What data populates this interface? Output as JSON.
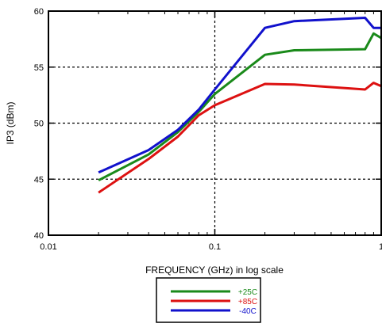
{
  "chart_data": {
    "type": "line",
    "xlabel": "FREQUENCY (GHz) in log scale",
    "ylabel": "IP3 (dBm)",
    "x_scale": "log",
    "xlim": [
      0.01,
      1
    ],
    "ylim": [
      40,
      60
    ],
    "x_ticks": [
      {
        "value": 0.01,
        "label": "0.01"
      },
      {
        "value": 0.1,
        "label": "0.1"
      },
      {
        "value": 1,
        "label": "1"
      }
    ],
    "y_ticks": [
      {
        "value": 40,
        "label": "40"
      },
      {
        "value": 45,
        "label": "45"
      },
      {
        "value": 50,
        "label": "50"
      },
      {
        "value": 55,
        "label": "55"
      },
      {
        "value": 60,
        "label": "60"
      }
    ],
    "grid": "dashed at major ticks",
    "legend_position": "bottom-center below plot",
    "series": [
      {
        "name": "+25C",
        "color": "#1a8a1a",
        "points": [
          [
            0.02,
            44.9
          ],
          [
            0.04,
            47.2
          ],
          [
            0.06,
            49.2
          ],
          [
            0.08,
            51.0
          ],
          [
            0.1,
            52.6
          ],
          [
            0.2,
            56.1
          ],
          [
            0.3,
            56.5
          ],
          [
            0.8,
            56.6
          ],
          [
            0.9,
            58.0
          ],
          [
            1.0,
            57.6
          ]
        ]
      },
      {
        "name": "+85C",
        "color": "#dd1111",
        "points": [
          [
            0.02,
            43.8
          ],
          [
            0.04,
            46.8
          ],
          [
            0.06,
            48.8
          ],
          [
            0.08,
            50.7
          ],
          [
            0.1,
            51.6
          ],
          [
            0.2,
            53.5
          ],
          [
            0.3,
            53.45
          ],
          [
            0.8,
            53.0
          ],
          [
            0.9,
            53.6
          ],
          [
            1.0,
            53.3
          ]
        ]
      },
      {
        "name": "-40C",
        "color": "#1111cc",
        "points": [
          [
            0.02,
            45.6
          ],
          [
            0.04,
            47.6
          ],
          [
            0.06,
            49.4
          ],
          [
            0.08,
            51.2
          ],
          [
            0.1,
            53.0
          ],
          [
            0.2,
            58.5
          ],
          [
            0.3,
            59.1
          ],
          [
            0.8,
            59.4
          ],
          [
            0.9,
            58.5
          ],
          [
            1.0,
            58.5
          ]
        ]
      }
    ]
  }
}
